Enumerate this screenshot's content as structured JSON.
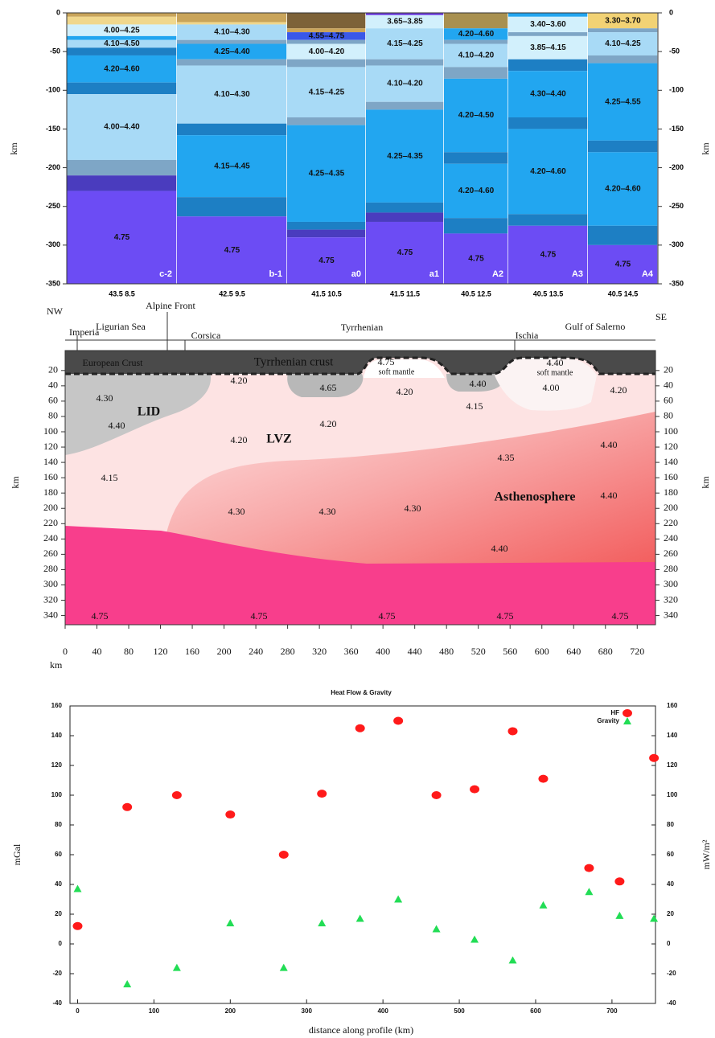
{
  "chart_data": [
    {
      "type": "layered-columns",
      "ylabel": "km",
      "y2label": "km",
      "ylim": [
        -350,
        0
      ],
      "yticks": [
        0,
        -50,
        -100,
        -150,
        -200,
        -250,
        -300,
        -350
      ],
      "columns": [
        {
          "name": "c-2",
          "position": "43.5 8.5",
          "layers": [
            {
              "thickness": 5,
              "color": "#c9a45a"
            },
            {
              "thickness": 10,
              "color": "#f0d78c"
            },
            {
              "thickness": 15,
              "color": "#d2f0fc",
              "label": "4.00–4.25"
            },
            {
              "thickness": 5,
              "color": "#22a6f0"
            },
            {
              "thickness": 10,
              "color": "#a8daf6",
              "label": "4.10–4.50"
            },
            {
              "thickness": 10,
              "color": "#1d7fc4"
            },
            {
              "thickness": 35,
              "color": "#22a6f0",
              "label": "4.20–4.60"
            },
            {
              "thickness": 15,
              "color": "#1d7fc4"
            },
            {
              "thickness": 85,
              "color": "#a8daf6",
              "label": "4.00–4.40"
            },
            {
              "thickness": 20,
              "color": "#7ea6c6"
            },
            {
              "thickness": 20,
              "color": "#4a3cbe"
            },
            {
              "thickness": 120,
              "color": "#6c4cf4",
              "label": "4.75"
            }
          ]
        },
        {
          "name": "b-1",
          "position": "42.5 9.5",
          "layers": [
            {
              "thickness": 12,
              "color": "#c9a45a"
            },
            {
              "thickness": 3,
              "color": "#f0d78c"
            },
            {
              "thickness": 20,
              "color": "#a8daf6",
              "label": "4.10–4.30"
            },
            {
              "thickness": 5,
              "color": "#7ea6c6"
            },
            {
              "thickness": 20,
              "color": "#22a6f0",
              "label": "4.25–4.40"
            },
            {
              "thickness": 8,
              "color": "#7ea6c6"
            },
            {
              "thickness": 75,
              "color": "#a8daf6",
              "label": "4.10–4.30"
            },
            {
              "thickness": 15,
              "color": "#1d7fc4"
            },
            {
              "thickness": 80,
              "color": "#22a6f0",
              "label": "4.15–4.45"
            },
            {
              "thickness": 25,
              "color": "#1d7fc4"
            },
            {
              "thickness": 87,
              "color": "#6c4cf4",
              "label": "4.75"
            }
          ]
        },
        {
          "name": "a0",
          "position": "41.5 10.5",
          "layers": [
            {
              "thickness": 20,
              "color": "#7d6238"
            },
            {
              "thickness": 5,
              "color": "#c9a45a"
            },
            {
              "thickness": 10,
              "color": "#3a58e8",
              "label": "4.55–4.75"
            },
            {
              "thickness": 5,
              "color": "#7ea6c6"
            },
            {
              "thickness": 20,
              "color": "#d2f0fc",
              "label": "4.00–4.20"
            },
            {
              "thickness": 10,
              "color": "#7ea6c6"
            },
            {
              "thickness": 65,
              "color": "#a8daf6",
              "label": "4.15–4.25"
            },
            {
              "thickness": 10,
              "color": "#7ea6c6"
            },
            {
              "thickness": 125,
              "color": "#22a6f0",
              "label": "4.25–4.35"
            },
            {
              "thickness": 10,
              "color": "#1d7fc4"
            },
            {
              "thickness": 10,
              "color": "#4a3cbe"
            },
            {
              "thickness": 60,
              "color": "#6c4cf4",
              "label": "4.75"
            }
          ]
        },
        {
          "name": "a1",
          "position": "41.5 11.5",
          "layers": [
            {
              "thickness": 3,
              "color": "#7040e0"
            },
            {
              "thickness": 17,
              "color": "#d2f0fc",
              "label": "3.65–3.85"
            },
            {
              "thickness": 40,
              "color": "#a8daf6",
              "label": "4.15–4.25"
            },
            {
              "thickness": 8,
              "color": "#7ea6c6"
            },
            {
              "thickness": 47,
              "color": "#a8daf6",
              "label": "4.10–4.20"
            },
            {
              "thickness": 10,
              "color": "#7ea6c6"
            },
            {
              "thickness": 120,
              "color": "#22a6f0",
              "label": "4.25–4.35"
            },
            {
              "thickness": 13,
              "color": "#1d7fc4"
            },
            {
              "thickness": 12,
              "color": "#4a3cbe"
            },
            {
              "thickness": 80,
              "color": "#6c4cf4",
              "label": "4.75"
            }
          ]
        },
        {
          "name": "A2",
          "position": "40.5 12.5",
          "layers": [
            {
              "thickness": 20,
              "color": "#a89050"
            },
            {
              "thickness": 15,
              "color": "#22a6f0",
              "label": "4.20–4.60"
            },
            {
              "thickness": 5,
              "color": "#7ea6c6"
            },
            {
              "thickness": 30,
              "color": "#a8daf6",
              "label": "4.10–4.20"
            },
            {
              "thickness": 15,
              "color": "#7ea6c6"
            },
            {
              "thickness": 95,
              "color": "#22a6f0",
              "label": "4.20–4.50"
            },
            {
              "thickness": 15,
              "color": "#1d7fc4"
            },
            {
              "thickness": 70,
              "color": "#22a6f0",
              "label": "4.20–4.60"
            },
            {
              "thickness": 20,
              "color": "#1d7fc4"
            },
            {
              "thickness": 65,
              "color": "#6c4cf4",
              "label": "4.75"
            }
          ]
        },
        {
          "name": "A3",
          "position": "40.5 13.5",
          "layers": [
            {
              "thickness": 5,
              "color": "#22a6f0"
            },
            {
              "thickness": 20,
              "color": "#d2f0fc",
              "label": "3.40–3.60"
            },
            {
              "thickness": 5,
              "color": "#7ea6c6"
            },
            {
              "thickness": 30,
              "color": "#d2f0fc",
              "label": "3.85–4.15"
            },
            {
              "thickness": 15,
              "color": "#1d7fc4"
            },
            {
              "thickness": 60,
              "color": "#22a6f0",
              "label": "4.30–4.40"
            },
            {
              "thickness": 15,
              "color": "#1d7fc4"
            },
            {
              "thickness": 110,
              "color": "#22a6f0",
              "label": "4.20–4.60"
            },
            {
              "thickness": 15,
              "color": "#1d7fc4"
            },
            {
              "thickness": 75,
              "color": "#6c4cf4",
              "label": "4.75"
            }
          ]
        },
        {
          "name": "A4",
          "position": "40.5 14.5",
          "layers": [
            {
              "thickness": 20,
              "color": "#f2d274",
              "label": "3.30–3.70"
            },
            {
              "thickness": 5,
              "color": "#7ea6c6"
            },
            {
              "thickness": 30,
              "color": "#a8daf6",
              "label": "4.10–4.25"
            },
            {
              "thickness": 10,
              "color": "#7ea6c6"
            },
            {
              "thickness": 100,
              "color": "#22a6f0",
              "label": "4.25–4.55"
            },
            {
              "thickness": 15,
              "color": "#1d7fc4"
            },
            {
              "thickness": 95,
              "color": "#22a6f0",
              "label": "4.20–4.60"
            },
            {
              "thickness": 25,
              "color": "#1d7fc4"
            },
            {
              "thickness": 50,
              "color": "#6c4cf4",
              "label": "4.75"
            }
          ]
        }
      ]
    },
    {
      "type": "section",
      "xlabel": "km",
      "ylabel": "km",
      "y2label": "km",
      "xlim": [
        0,
        743
      ],
      "ylim": [
        -5,
        352
      ],
      "xticks": [
        0,
        40,
        80,
        120,
        160,
        200,
        240,
        280,
        320,
        360,
        400,
        440,
        480,
        520,
        560,
        600,
        640,
        680,
        720
      ],
      "yticks": [
        20,
        40,
        60,
        80,
        100,
        120,
        140,
        160,
        180,
        200,
        220,
        240,
        260,
        280,
        300,
        320,
        340
      ],
      "place_names": [
        "NW",
        "Alpine Front",
        "Ligurian Sea",
        "Imperia",
        "Corsica",
        "Tyrrhenian",
        "Ischia",
        "Gulf of Salerno",
        "SE"
      ],
      "region_labels": [
        "European Crust",
        "Tyrrhenian crust",
        "4.75",
        "soft mantle",
        "4.40",
        "soft mantle",
        "LID",
        "LVZ",
        "Asthenosphere",
        "4.30",
        "4.40",
        "4.15",
        "4.20",
        "4.20",
        "4.65",
        "4.20",
        "4.20",
        "4.40",
        "4.15",
        "4.00",
        "4.20",
        "4.40",
        "4.35",
        "4.30",
        "4.30",
        "4.30",
        "4.40",
        "4.40",
        "4.75",
        "4.75",
        "4.75",
        "4.75",
        "4.75"
      ]
    },
    {
      "type": "scatter",
      "title": "Heat Flow & Gravity",
      "xlabel": "distance along profile (km)",
      "ylabel": "mGal",
      "y2label": "mW/m²",
      "xlim": [
        -10,
        757
      ],
      "xticks": [
        0,
        100,
        200,
        300,
        400,
        500,
        600,
        700
      ],
      "ylim": [
        -40,
        160
      ],
      "yticks": [
        -40,
        -20,
        0,
        20,
        40,
        60,
        80,
        100,
        120,
        140,
        160
      ],
      "y2lim": [
        -40,
        160
      ],
      "y2ticks": [
        -40,
        -20,
        0,
        20,
        40,
        60,
        80,
        100,
        120,
        140,
        160
      ],
      "legend": "upper right",
      "x": [
        0,
        65,
        130,
        200,
        270,
        320,
        370,
        420,
        470,
        520,
        570,
        610,
        670,
        710,
        755
      ],
      "series": [
        {
          "name": "HF",
          "color": "#ff1a1a",
          "marker": "circle",
          "axis": "y2",
          "values": [
            12,
            92,
            100,
            87,
            60,
            101,
            145,
            150,
            100,
            104,
            143,
            111,
            51,
            42,
            125
          ]
        },
        {
          "name": "Gravity",
          "color": "#22dd55",
          "marker": "triangle",
          "values": [
            37,
            -27,
            -16,
            14,
            -16,
            14,
            17,
            30,
            10,
            3,
            -11,
            26,
            35,
            19,
            17
          ]
        }
      ]
    }
  ]
}
